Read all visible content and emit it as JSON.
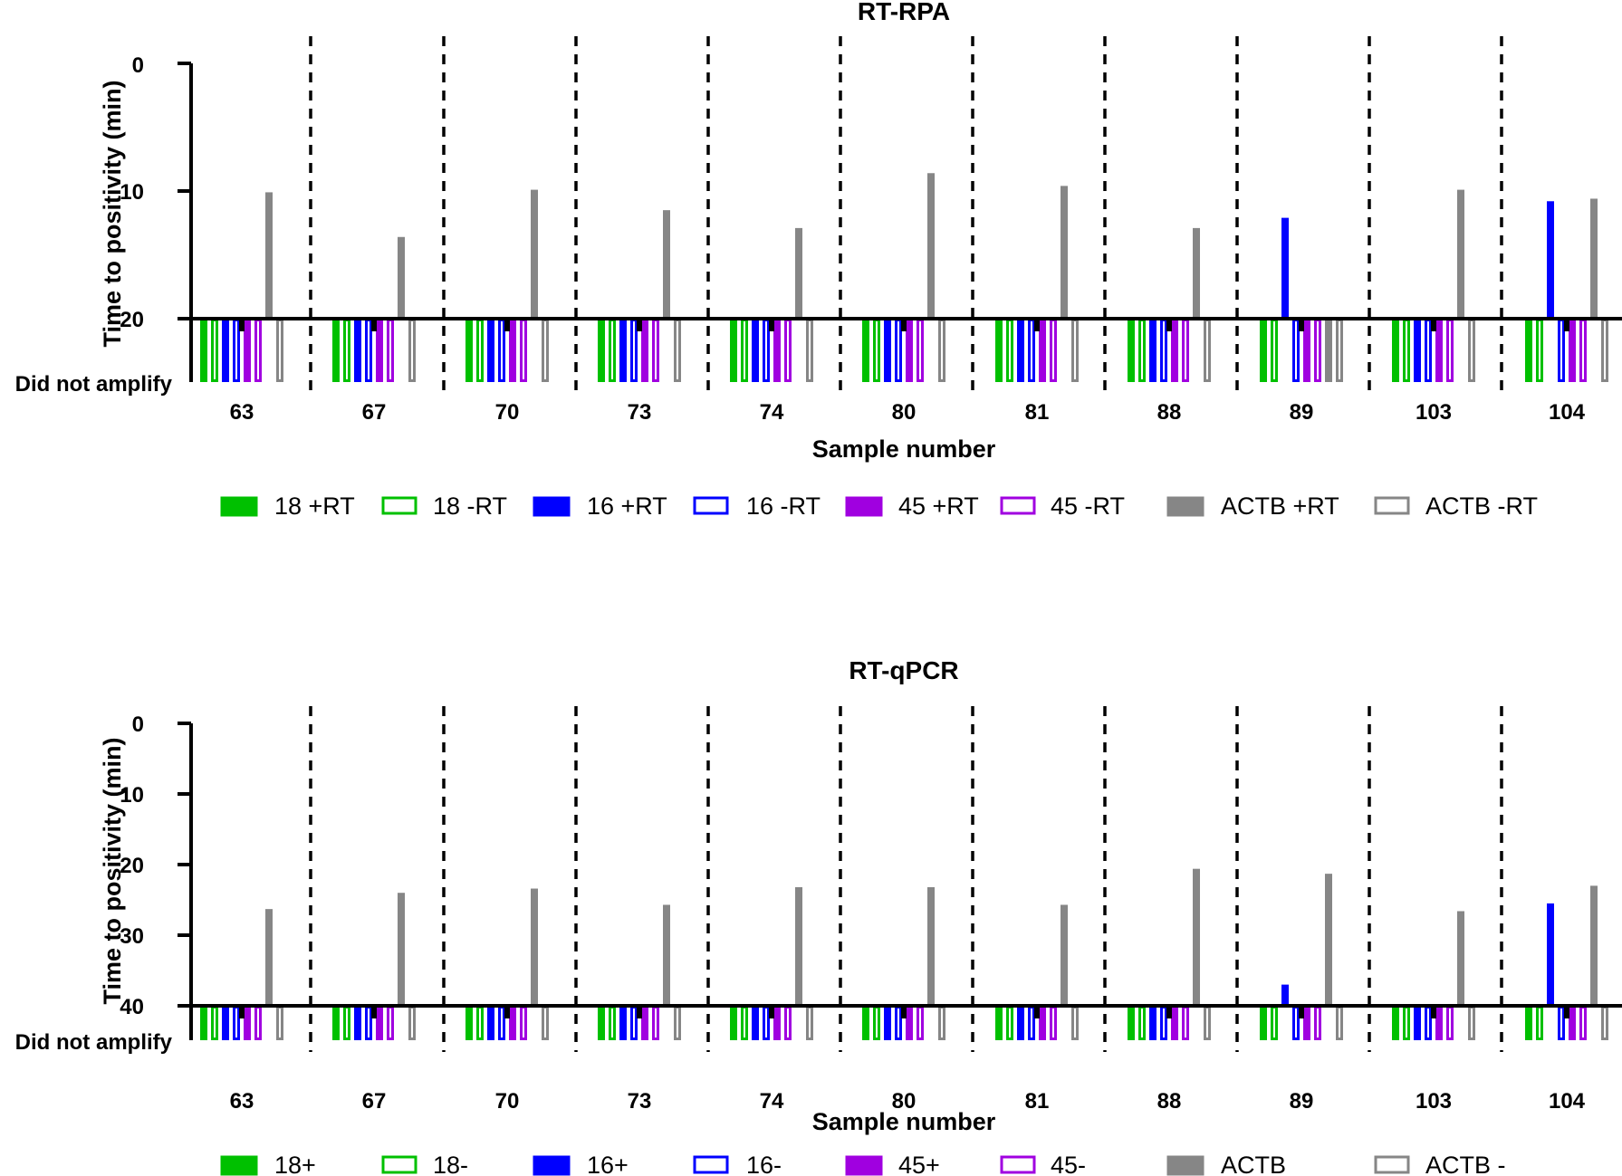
{
  "colors": {
    "green": "#00c000",
    "blue": "#0000ff",
    "purple": "#a000e0",
    "gray": "#868686",
    "axis": "#000000"
  },
  "series_style": [
    {
      "color": "green",
      "filled": true
    },
    {
      "color": "green",
      "filled": false
    },
    {
      "color": "blue",
      "filled": true
    },
    {
      "color": "blue",
      "filled": false
    },
    {
      "color": "purple",
      "filled": true
    },
    {
      "color": "purple",
      "filled": false
    },
    {
      "color": "gray",
      "filled": true
    },
    {
      "color": "gray",
      "filled": false
    }
  ],
  "chart_data": [
    {
      "id": "rpa",
      "type": "bar",
      "title": "RT-RPA",
      "xlabel": "Sample number",
      "ylabel": "Time to positivity (min)",
      "y_inverted": true,
      "ylim": [
        0,
        20
      ],
      "yticks": [
        "0",
        "10",
        "20"
      ],
      "dna_label": "Did not amplify",
      "categories": [
        "63",
        "67",
        "70",
        "73",
        "74",
        "80",
        "81",
        "88",
        "89",
        "103",
        "104"
      ],
      "legend": [
        "18 +RT",
        "18 -RT",
        "16 +RT",
        "16 -RT",
        "45 +RT",
        "45 -RT",
        "ACTB +RT",
        "ACTB -RT"
      ],
      "series": [
        {
          "name": "18 +RT",
          "values": [
            null,
            null,
            null,
            null,
            null,
            null,
            null,
            null,
            null,
            null,
            null
          ]
        },
        {
          "name": "18 -RT",
          "values": [
            null,
            null,
            null,
            null,
            null,
            null,
            null,
            null,
            null,
            null,
            null
          ]
        },
        {
          "name": "16 +RT",
          "values": [
            null,
            null,
            null,
            null,
            null,
            null,
            null,
            null,
            12.1,
            null,
            10.8
          ]
        },
        {
          "name": "16 -RT",
          "values": [
            null,
            null,
            null,
            null,
            null,
            null,
            null,
            null,
            null,
            null,
            null
          ]
        },
        {
          "name": "45 +RT",
          "values": [
            null,
            null,
            null,
            null,
            null,
            null,
            null,
            null,
            null,
            null,
            null
          ]
        },
        {
          "name": "45 -RT",
          "values": [
            null,
            null,
            null,
            null,
            null,
            null,
            null,
            null,
            null,
            null,
            null
          ]
        },
        {
          "name": "ACTB +RT",
          "values": [
            10.1,
            13.6,
            9.9,
            11.5,
            12.9,
            8.6,
            9.6,
            12.9,
            null,
            9.9,
            10.6
          ]
        },
        {
          "name": "ACTB -RT",
          "values": [
            null,
            null,
            null,
            null,
            null,
            null,
            null,
            null,
            null,
            null,
            null
          ]
        }
      ]
    },
    {
      "id": "qpcr",
      "type": "bar",
      "title": "RT-qPCR",
      "xlabel": "Sample number",
      "ylabel": "Time to positivity (min)",
      "y_inverted": true,
      "ylim": [
        0,
        40
      ],
      "yticks": [
        "0",
        "10",
        "20",
        "30",
        "40"
      ],
      "dna_label": "Did not amplify",
      "categories": [
        "63",
        "67",
        "70",
        "73",
        "74",
        "80",
        "81",
        "88",
        "89",
        "103",
        "104"
      ],
      "legend": [
        "18+",
        "18-",
        "16+",
        "16-",
        "45+",
        "45-",
        "ACTB",
        "ACTB -"
      ],
      "series": [
        {
          "name": "18+",
          "values": [
            null,
            null,
            null,
            null,
            null,
            null,
            null,
            null,
            null,
            null,
            null
          ]
        },
        {
          "name": "18-",
          "values": [
            null,
            null,
            null,
            null,
            null,
            null,
            null,
            null,
            null,
            null,
            null
          ]
        },
        {
          "name": "16+",
          "values": [
            null,
            null,
            null,
            null,
            null,
            null,
            null,
            null,
            37.0,
            null,
            25.5
          ]
        },
        {
          "name": "16-",
          "values": [
            null,
            null,
            null,
            null,
            null,
            null,
            null,
            null,
            null,
            null,
            null
          ]
        },
        {
          "name": "45+",
          "values": [
            null,
            null,
            null,
            null,
            null,
            null,
            null,
            null,
            null,
            null,
            null
          ]
        },
        {
          "name": "45-",
          "values": [
            null,
            null,
            null,
            null,
            null,
            null,
            null,
            null,
            null,
            null,
            null
          ]
        },
        {
          "name": "ACTB",
          "values": [
            26.3,
            24.0,
            23.4,
            25.7,
            23.2,
            23.2,
            25.7,
            20.6,
            21.3,
            26.6,
            23.0
          ]
        },
        {
          "name": "ACTB -",
          "values": [
            null,
            null,
            null,
            null,
            null,
            null,
            null,
            null,
            null,
            null,
            null
          ]
        }
      ]
    }
  ]
}
